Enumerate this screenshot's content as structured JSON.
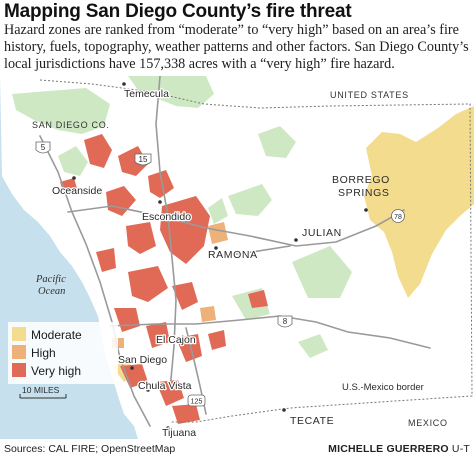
{
  "title": "Mapping San Diego County’s fire threat",
  "subtitle": "Hazard zones are ranked from “moderate” to “very high” based on an area’s fire history, fuels, topography, weather patterns and other factors. San Diego County’s local jurisdictions have 157,338 acres with a “very high” fire hazard.",
  "map": {
    "places": {
      "temecula": "Temecula",
      "oceanside": "Oceanside",
      "escondido": "Escondido",
      "ramona": "RAMONA",
      "julian": "JULIAN",
      "borrego_line1": "BORREGO",
      "borrego_line2": "SPRINGS",
      "el_cajon": "El Cajon",
      "san_diego": "San Diego",
      "chula_vista": "Chula Vista",
      "tijuana": "Tijuana",
      "tecate": "TECATE",
      "mexico": "MEXICO"
    },
    "regions": {
      "united_states": "UNITED STATES",
      "san_diego_co": "SAN DIEGO CO.",
      "pacific_line1": "Pacific",
      "pacific_line2": "Ocean",
      "border": "U.S.-Mexico border"
    },
    "highways": {
      "i5": "5",
      "i15": "15",
      "i8": "8",
      "sr78": "78",
      "sr125": "125"
    },
    "scale_label": "10 MILES",
    "legend": [
      {
        "label": "Moderate",
        "color": "#f3dc8e"
      },
      {
        "label": "High",
        "color": "#eeb179"
      },
      {
        "label": "Very high",
        "color": "#e06a55"
      }
    ],
    "colors": {
      "ocean": "#c6e0ee",
      "land": "#ffffff",
      "parks": "#cfe8c4",
      "moderate": "#f3dc8e",
      "high": "#eeb179",
      "very_high": "#e06a55",
      "roads": "#9a9a9a"
    }
  },
  "footer": {
    "sources": "Sources: CAL FIRE; OpenStreetMap",
    "credit_name": "MICHELLE GUERRERO",
    "credit_org": "U-T"
  }
}
